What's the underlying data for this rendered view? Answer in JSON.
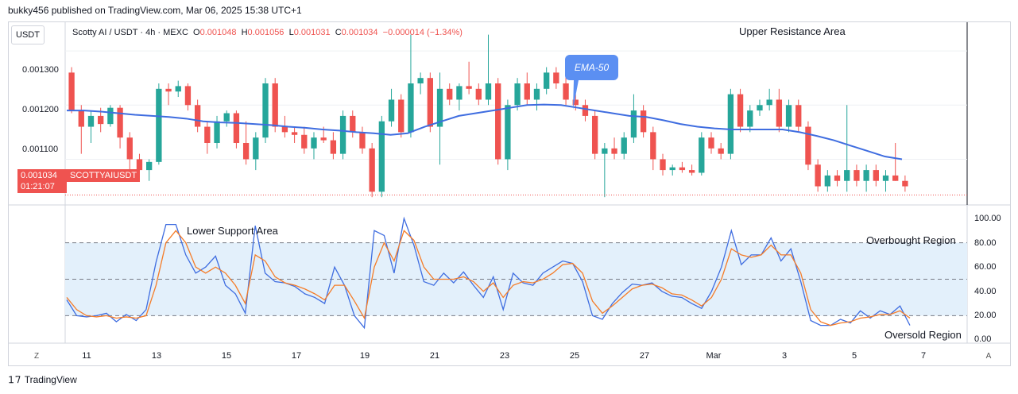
{
  "header": {
    "publisher": "bukky456 published on TradingView.com, Mar 06, 2025 15:38 UTC+1"
  },
  "currency_button": "USDT",
  "symbol": {
    "name": "Scotty AI / USDT · 4h · MEXC",
    "o_label": "O",
    "o_value": "0.001048",
    "h_label": "H",
    "h_value": "0.001056",
    "l_label": "L",
    "l_value": "0.001031",
    "c_label": "C",
    "c_value": "0.001034",
    "change": "−0.000014 (−1.34%)"
  },
  "price_tag": {
    "price": "0.001034",
    "countdown": "01:21:07",
    "ticker": "SCOTTYAIUSDT"
  },
  "annotations": {
    "upper_resistance": "Upper Resistance Area",
    "lower_support": "Lower Support Area",
    "overbought": "Overbought Region",
    "oversold": "Oversold Region",
    "ema": "EMA-50"
  },
  "footer": {
    "brand": "TradingView"
  },
  "nav": {
    "left": "Z",
    "right": "A"
  },
  "colors": {
    "up": "#26a69a",
    "down": "#ef5350",
    "ema": "#3f6de0",
    "rsi": "#3f6de0",
    "signal": "#f57c28",
    "band": "#e3f0fb"
  },
  "chart_data": [
    {
      "type": "candlestick",
      "title": "",
      "ylim": [
        0.00102,
        0.00135
      ],
      "price_axis_ticks": [
        "0.001300",
        "0.001200",
        "0.001100"
      ],
      "x_ticks": [
        "11",
        "13",
        "15",
        "17",
        "19",
        "21",
        "23",
        "25",
        "27",
        "Mar",
        "3",
        "5",
        "7"
      ],
      "last_price": 0.001034,
      "candles": [
        [
          0.00126,
          0.00127,
          0.001185,
          0.00119
        ],
        [
          0.00119,
          0.0012,
          0.00111,
          0.00116
        ],
        [
          0.00116,
          0.00119,
          0.00113,
          0.00118
        ],
        [
          0.00118,
          0.001195,
          0.00115,
          0.001165
        ],
        [
          0.001165,
          0.0012,
          0.00116,
          0.001195
        ],
        [
          0.001195,
          0.0012,
          0.00112,
          0.00114
        ],
        [
          0.00114,
          0.00115,
          0.00108,
          0.0011
        ],
        [
          0.0011,
          0.00111,
          0.00107,
          0.00108
        ],
        [
          0.00108,
          0.0011,
          0.00106,
          0.001095
        ],
        [
          0.001095,
          0.00124,
          0.00109,
          0.00123
        ],
        [
          0.00123,
          0.00124,
          0.0012,
          0.001225
        ],
        [
          0.001225,
          0.001245,
          0.001215,
          0.001235
        ],
        [
          0.001235,
          0.00124,
          0.00119,
          0.0012
        ],
        [
          0.0012,
          0.00121,
          0.00115,
          0.00116
        ],
        [
          0.00116,
          0.00117,
          0.00111,
          0.00113
        ],
        [
          0.00113,
          0.00118,
          0.00112,
          0.00117
        ],
        [
          0.00117,
          0.00119,
          0.00116,
          0.001185
        ],
        [
          0.001185,
          0.00119,
          0.00112,
          0.00113
        ],
        [
          0.00113,
          0.00117,
          0.00109,
          0.0011
        ],
        [
          0.0011,
          0.00115,
          0.00108,
          0.00114
        ],
        [
          0.00114,
          0.00125,
          0.00113,
          0.00124
        ],
        [
          0.00124,
          0.00125,
          0.00115,
          0.00116
        ],
        [
          0.00116,
          0.00118,
          0.00114,
          0.00115
        ],
        [
          0.00115,
          0.00116,
          0.00113,
          0.001145
        ],
        [
          0.001145,
          0.00116,
          0.00111,
          0.00112
        ],
        [
          0.00112,
          0.00115,
          0.0011,
          0.00114
        ],
        [
          0.00114,
          0.00116,
          0.00113,
          0.001135
        ],
        [
          0.001135,
          0.00115,
          0.0011,
          0.00111
        ],
        [
          0.00111,
          0.00119,
          0.0011,
          0.00118
        ],
        [
          0.00118,
          0.00119,
          0.00114,
          0.00115
        ],
        [
          0.00115,
          0.00116,
          0.00111,
          0.00112
        ],
        [
          0.00112,
          0.00113,
          0.00103,
          0.00104
        ],
        [
          0.00104,
          0.00118,
          0.00103,
          0.00117
        ],
        [
          0.00117,
          0.00123,
          0.00116,
          0.00121
        ],
        [
          0.00121,
          0.00122,
          0.00114,
          0.00115
        ],
        [
          0.00115,
          0.00133,
          0.00114,
          0.00124
        ],
        [
          0.00124,
          0.00126,
          0.00122,
          0.00125
        ],
        [
          0.00125,
          0.00126,
          0.00115,
          0.00116
        ],
        [
          0.00116,
          0.00126,
          0.00109,
          0.00123
        ],
        [
          0.00123,
          0.00124,
          0.0012,
          0.00121
        ],
        [
          0.00121,
          0.00124,
          0.00119,
          0.001235
        ],
        [
          0.001235,
          0.00128,
          0.00122,
          0.00123
        ],
        [
          0.00123,
          0.00124,
          0.0012,
          0.00121
        ],
        [
          0.00121,
          0.00133,
          0.0012,
          0.00124
        ],
        [
          0.00124,
          0.00125,
          0.00109,
          0.0011
        ],
        [
          0.0011,
          0.00121,
          0.00108,
          0.0012
        ],
        [
          0.0012,
          0.00125,
          0.00119,
          0.00124
        ],
        [
          0.00124,
          0.00126,
          0.0012,
          0.00121
        ],
        [
          0.00121,
          0.00124,
          0.00119,
          0.00123
        ],
        [
          0.00123,
          0.00127,
          0.00122,
          0.00126
        ],
        [
          0.00126,
          0.00127,
          0.00123,
          0.00124
        ],
        [
          0.00124,
          0.00126,
          0.0012,
          0.00121
        ],
        [
          0.00121,
          0.00122,
          0.00119,
          0.0012
        ],
        [
          0.0012,
          0.00121,
          0.00117,
          0.00118
        ],
        [
          0.00118,
          0.00119,
          0.0011,
          0.00111
        ],
        [
          0.00111,
          0.00113,
          0.00103,
          0.00112
        ],
        [
          0.00112,
          0.00114,
          0.0011,
          0.00111
        ],
        [
          0.00111,
          0.00115,
          0.0011,
          0.00114
        ],
        [
          0.00114,
          0.00122,
          0.00113,
          0.00119
        ],
        [
          0.00119,
          0.0012,
          0.00114,
          0.00115
        ],
        [
          0.00115,
          0.00116,
          0.00108,
          0.0011
        ],
        [
          0.0011,
          0.00111,
          0.00107,
          0.00108
        ],
        [
          0.00108,
          0.00109,
          0.00107,
          0.001085
        ],
        [
          0.001085,
          0.001095,
          0.001075,
          0.00108
        ],
        [
          0.00108,
          0.00109,
          0.00107,
          0.001075
        ],
        [
          0.001075,
          0.00115,
          0.00107,
          0.00114
        ],
        [
          0.00114,
          0.00115,
          0.00111,
          0.00112
        ],
        [
          0.00112,
          0.00113,
          0.0011,
          0.00111
        ],
        [
          0.00111,
          0.00123,
          0.0011,
          0.00122
        ],
        [
          0.00122,
          0.00123,
          0.00115,
          0.00116
        ],
        [
          0.00116,
          0.0012,
          0.00115,
          0.00119
        ],
        [
          0.00119,
          0.00121,
          0.00118,
          0.0012
        ],
        [
          0.0012,
          0.00123,
          0.00119,
          0.00121
        ],
        [
          0.00121,
          0.00123,
          0.00115,
          0.00116
        ],
        [
          0.00116,
          0.00121,
          0.00115,
          0.0012
        ],
        [
          0.0012,
          0.00121,
          0.00115,
          0.00116
        ],
        [
          0.00116,
          0.00117,
          0.00108,
          0.00109
        ],
        [
          0.00109,
          0.0011,
          0.00104,
          0.00105
        ],
        [
          0.00105,
          0.00108,
          0.00104,
          0.00107
        ],
        [
          0.00107,
          0.00108,
          0.00105,
          0.00106
        ],
        [
          0.00106,
          0.0012,
          0.00104,
          0.00108
        ],
        [
          0.00108,
          0.00109,
          0.00105,
          0.00106
        ],
        [
          0.00106,
          0.00109,
          0.00104,
          0.00108
        ],
        [
          0.00108,
          0.00109,
          0.00105,
          0.00106
        ],
        [
          0.00106,
          0.00108,
          0.00104,
          0.00107
        ],
        [
          0.00107,
          0.00113,
          0.00106,
          0.00106
        ],
        [
          0.00106,
          0.00107,
          0.00104,
          0.00105
        ]
      ],
      "ema50": [
        0.00119,
        0.00119,
        0.001188,
        0.001185,
        0.001182,
        0.00118,
        0.001178,
        0.001175,
        0.00117,
        0.001168,
        0.001167,
        0.001165,
        0.001163,
        0.00116,
        0.001158,
        0.001155,
        0.001153,
        0.00115,
        0.001148,
        0.001145,
        0.001148,
        0.00116,
        0.00117,
        0.00118,
        0.001185,
        0.00119,
        0.001195,
        0.0012,
        0.001201,
        0.0012,
        0.001195,
        0.00119,
        0.001185,
        0.00118,
        0.001178,
        0.001172,
        0.001165,
        0.00116,
        0.001157,
        0.001155,
        0.001155,
        0.001155,
        0.001155,
        0.00115,
        0.001143,
        0.001135,
        0.001125,
        0.001115,
        0.001105,
        0.0011
      ]
    },
    {
      "type": "line",
      "title": "",
      "ylim": [
        0,
        100
      ],
      "y_ticks": [
        "100.00",
        "80.00",
        "60.00",
        "40.00",
        "20.00",
        "0.00"
      ],
      "levels": [
        80,
        50,
        20
      ],
      "series": [
        {
          "values": [
            33,
            20,
            19,
            20,
            22,
            15,
            21,
            16,
            25,
            64,
            95,
            95,
            70,
            55,
            60,
            69,
            45,
            38,
            22,
            94,
            55,
            48,
            47,
            44,
            38,
            35,
            30,
            60,
            45,
            20,
            10,
            90,
            86,
            55,
            100,
            78,
            48,
            45,
            55,
            47,
            56,
            45,
            35,
            52,
            25,
            55,
            47,
            45,
            55,
            60,
            65,
            63,
            48,
            20,
            17,
            30,
            39,
            46,
            45,
            47,
            40,
            36,
            35,
            30,
            26,
            40,
            60,
            90,
            62,
            70,
            70,
            84,
            65,
            75,
            48,
            16,
            12,
            12,
            17,
            14,
            24,
            18,
            24,
            21,
            28,
            12
          ]
        },
        {
          "values": [
            35,
            25,
            20,
            19,
            20,
            18,
            19,
            18,
            20,
            45,
            80,
            90,
            80,
            60,
            55,
            60,
            55,
            45,
            30,
            70,
            65,
            52,
            47,
            45,
            42,
            38,
            33,
            45,
            45,
            32,
            18,
            60,
            80,
            65,
            90,
            82,
            60,
            50,
            50,
            50,
            52,
            48,
            40,
            47,
            35,
            45,
            48,
            47,
            50,
            55,
            62,
            63,
            55,
            32,
            22,
            28,
            35,
            42,
            45,
            46,
            43,
            38,
            37,
            33,
            28,
            35,
            50,
            75,
            70,
            68,
            70,
            78,
            70,
            70,
            55,
            25,
            15,
            12,
            14,
            15,
            18,
            19,
            21,
            21,
            24,
            18
          ]
        }
      ]
    }
  ]
}
